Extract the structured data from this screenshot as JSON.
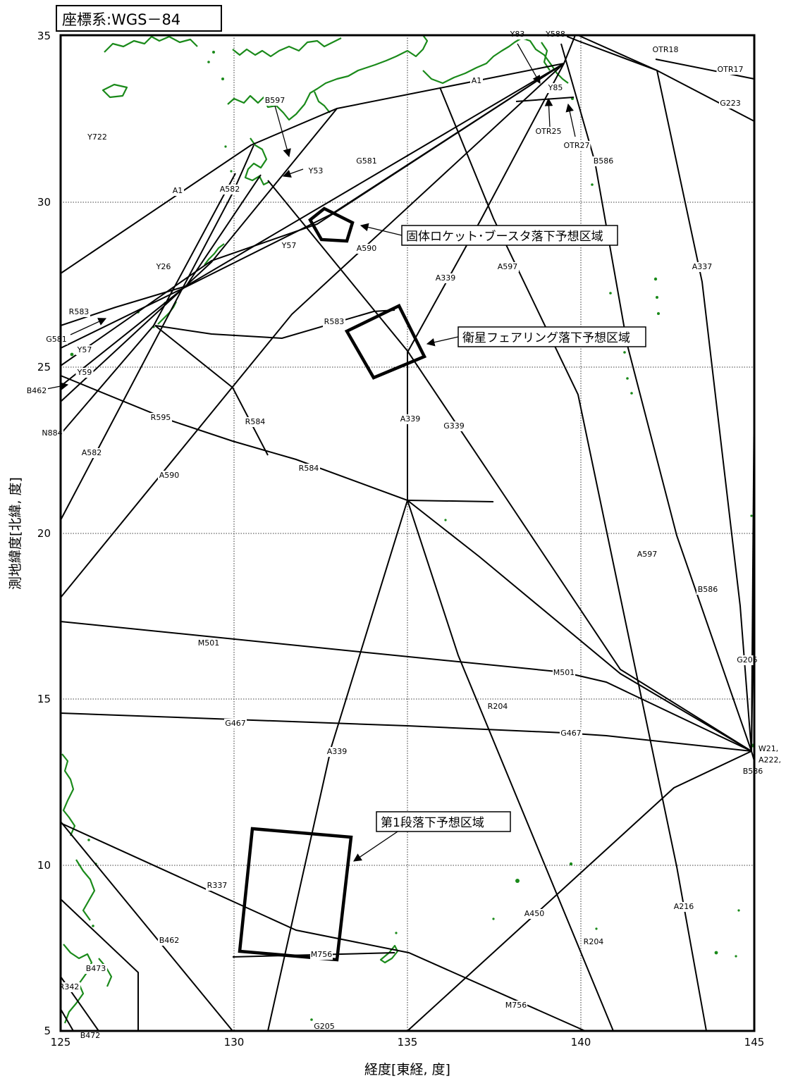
{
  "map": {
    "crs_label": "座標系:WGS－84",
    "x_axis_title": "経度[東経, 度]",
    "y_axis_title": "測地緯度[北緯, 度]",
    "lon_range": [
      125,
      145
    ],
    "lat_range": [
      5,
      35
    ],
    "lon_ticks": [
      "125",
      "130",
      "135",
      "140",
      "145"
    ],
    "lat_ticks": [
      "5",
      "10",
      "15",
      "20",
      "25",
      "30",
      "35"
    ],
    "zones": {
      "booster": "固体ロケット･ブースタ落下予想区域",
      "fairing": "衛星フェアリング落下予想区域",
      "stage1": "第1段落下予想区域"
    },
    "route_labels": [
      "Y83",
      "Y588",
      "OTR18",
      "OTR17",
      "A1",
      "Y85",
      "G223",
      "B597",
      "OTR25",
      "OTR27",
      "Y722",
      "B586",
      "Y53",
      "G581",
      "A582",
      "A1",
      "A590",
      "Y57",
      "A339",
      "A597",
      "A337",
      "Y26",
      "R583",
      "R583",
      "G581",
      "Y57",
      "Y59",
      "B462",
      "R595",
      "R584",
      "A339",
      "G339",
      "N884",
      "A582",
      "R584",
      "A590",
      "A597",
      "B586",
      "M501",
      "G205",
      "M501",
      "R204",
      "G467",
      "G467",
      "A339",
      "W21,",
      "A222,",
      "B586",
      "R337",
      "A450",
      "A216",
      "B462",
      "M756",
      "R204",
      "B473",
      "R342",
      "M756",
      "B472",
      "G205"
    ],
    "colors": {
      "routes": "#000000",
      "coastline": "#1a8a1a",
      "grid": "#000000"
    }
  }
}
